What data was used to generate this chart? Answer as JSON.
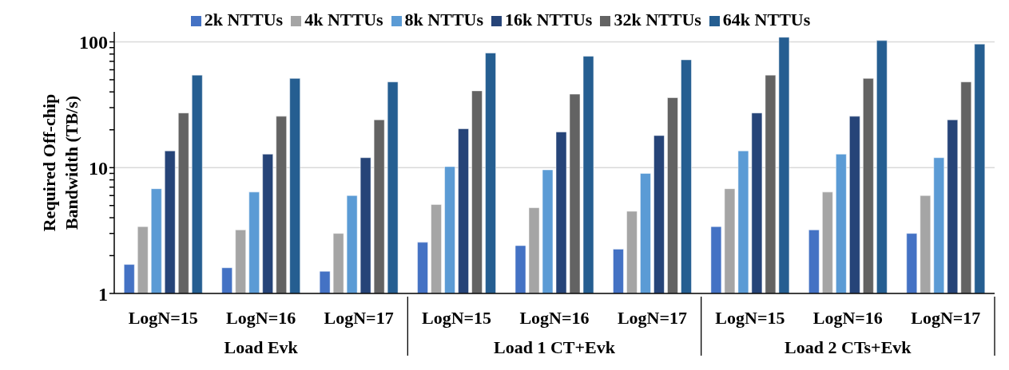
{
  "chart_data": {
    "type": "bar",
    "ylabel": "Required Off-chip Bandwidth (TB/s)",
    "categories": [
      "LogN=15",
      "LogN=16",
      "LogN=17",
      "LogN=15",
      "LogN=16",
      "LogN=17",
      "LogN=15",
      "LogN=16",
      "LogN=17"
    ],
    "annotations": [
      "Load Evk",
      "Load 1 CT+Evk",
      "Load 2 CTs+Evk"
    ],
    "series": [
      {
        "name": "2k NTTUs",
        "color": "#4472c4",
        "values": [
          1.7,
          1.6,
          1.5,
          2.55,
          2.4,
          2.25,
          3.4,
          3.2,
          3.0
        ]
      },
      {
        "name": "4k NTTUs",
        "color": "#a5a5a5",
        "values": [
          3.4,
          3.2,
          3.0,
          5.1,
          4.8,
          4.5,
          6.8,
          6.4,
          6.0
        ]
      },
      {
        "name": "8k NTTUs",
        "color": "#5b9bd5",
        "values": [
          6.8,
          6.4,
          6.0,
          10.2,
          9.6,
          9.0,
          13.6,
          12.8,
          12.0
        ]
      },
      {
        "name": "16k NTTUs",
        "color": "#264478",
        "values": [
          13.6,
          12.8,
          12.0,
          20.4,
          19.2,
          18.0,
          27.2,
          25.6,
          24.0
        ]
      },
      {
        "name": "32k NTTUs",
        "color": "#636363",
        "values": [
          27.2,
          25.6,
          24.0,
          40.8,
          38.4,
          36.0,
          54.4,
          51.2,
          48.0
        ]
      },
      {
        "name": "64k NTTUs",
        "color": "#255e91",
        "values": [
          54.4,
          51.2,
          48.0,
          81.6,
          76.8,
          72.0,
          108.8,
          102.4,
          96.0
        ]
      }
    ],
    "log": true,
    "ylim": [
      1,
      120
    ],
    "yticks": [
      1,
      {
        "value": 2,
        "label": null
      },
      {
        "value": 3,
        "label": null
      },
      {
        "value": 4,
        "label": null
      },
      {
        "value": 5,
        "label": null
      },
      {
        "value": 6,
        "label": null
      },
      {
        "value": 7,
        "label": null
      },
      {
        "value": 8,
        "label": null
      },
      {
        "value": 9,
        "label": null
      },
      10,
      {
        "value": 20,
        "label": null
      },
      {
        "value": 30,
        "label": null
      },
      {
        "value": 40,
        "label": null
      },
      {
        "value": 50,
        "label": null
      },
      {
        "value": 60,
        "label": null
      },
      {
        "value": 70,
        "label": null
      },
      {
        "value": 80,
        "label": null
      },
      {
        "value": 90,
        "label": null
      },
      100
    ],
    "grid": "y",
    "legend": "top"
  }
}
